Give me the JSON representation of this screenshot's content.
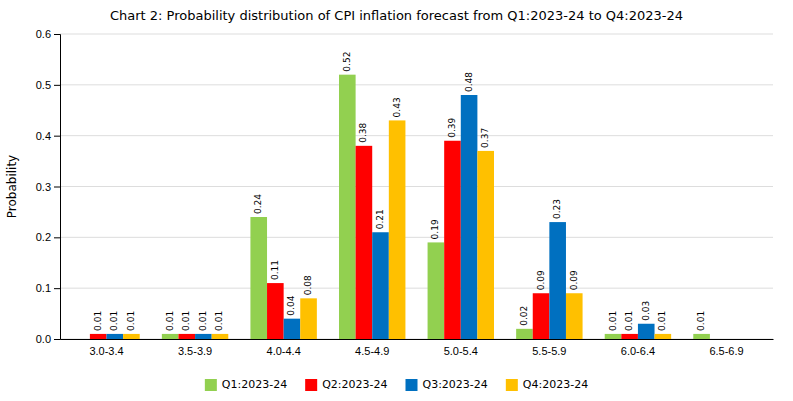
{
  "chart_data": {
    "type": "bar",
    "title": "Chart 2: Probability distribution of  CPI inflation forecast from Q1:2023-24 to Q4:2023-24",
    "y_label": "Probability",
    "categories": [
      "3.0-3.4",
      "3.5-3.9",
      "4.0-4.4",
      "4.5-4.9",
      "5.0-5.4",
      "5.5-5.9",
      "6.0-6.4",
      "6.5-6.9"
    ],
    "series": [
      {
        "name": "Q1:2023-24",
        "color": "#92d050",
        "values": [
          0.0,
          0.01,
          0.24,
          0.52,
          0.19,
          0.02,
          0.01,
          0.01
        ],
        "value_labels": [
          null,
          "0.01",
          "0.24",
          "0.52",
          "0.19",
          "0.02",
          "0.01",
          "0.01"
        ]
      },
      {
        "name": "Q2:2023-24",
        "color": "#ff0000",
        "values": [
          0.01,
          0.01,
          0.11,
          0.38,
          0.39,
          0.09,
          0.01,
          0.0
        ],
        "value_labels": [
          "0.01",
          "0.01",
          "0.11",
          "0.38",
          "0.39",
          "0.09",
          "0.01",
          null
        ]
      },
      {
        "name": "Q3:2023-24",
        "color": "#0070c0",
        "values": [
          0.01,
          0.01,
          0.04,
          0.21,
          0.48,
          0.23,
          0.03,
          0.0
        ],
        "value_labels": [
          "0.01",
          "0.01",
          "0.04",
          "0.21",
          "0.48",
          "0.23",
          "0.03",
          null
        ]
      },
      {
        "name": "Q4:2023-24",
        "color": "#ffc000",
        "values": [
          0.01,
          0.01,
          0.08,
          0.43,
          0.37,
          0.09,
          0.01,
          0.0
        ],
        "value_labels": [
          "0.01",
          "0.01",
          "0.08",
          "0.43",
          "0.37",
          "0.09",
          "0.01",
          null
        ]
      }
    ],
    "ylim": [
      0,
      0.6
    ],
    "yticks": [
      {
        "value": 0,
        "label": "0.0"
      },
      0.1,
      0.2,
      0.3,
      0.4,
      0.5,
      0.6
    ],
    "grid": true,
    "legend": "bottom",
    "data_labels": true
  }
}
